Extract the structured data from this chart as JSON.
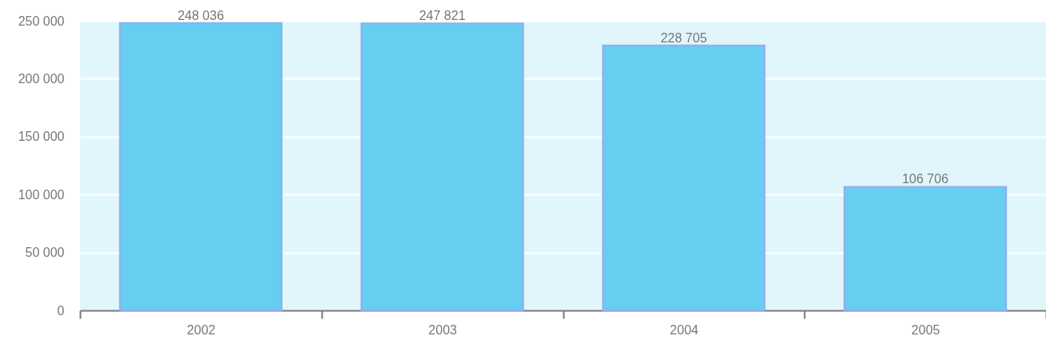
{
  "chart_data": {
    "type": "bar",
    "categories": [
      "2002",
      "2003",
      "2004",
      "2005"
    ],
    "values": [
      248036,
      247821,
      228705,
      106706
    ],
    "color": "#66cef0",
    "ylim": [
      0,
      250000
    ],
    "yticks": [
      0,
      50000,
      100000,
      150000,
      200000,
      250000
    ],
    "grid": "y",
    "data_labels": true
  }
}
